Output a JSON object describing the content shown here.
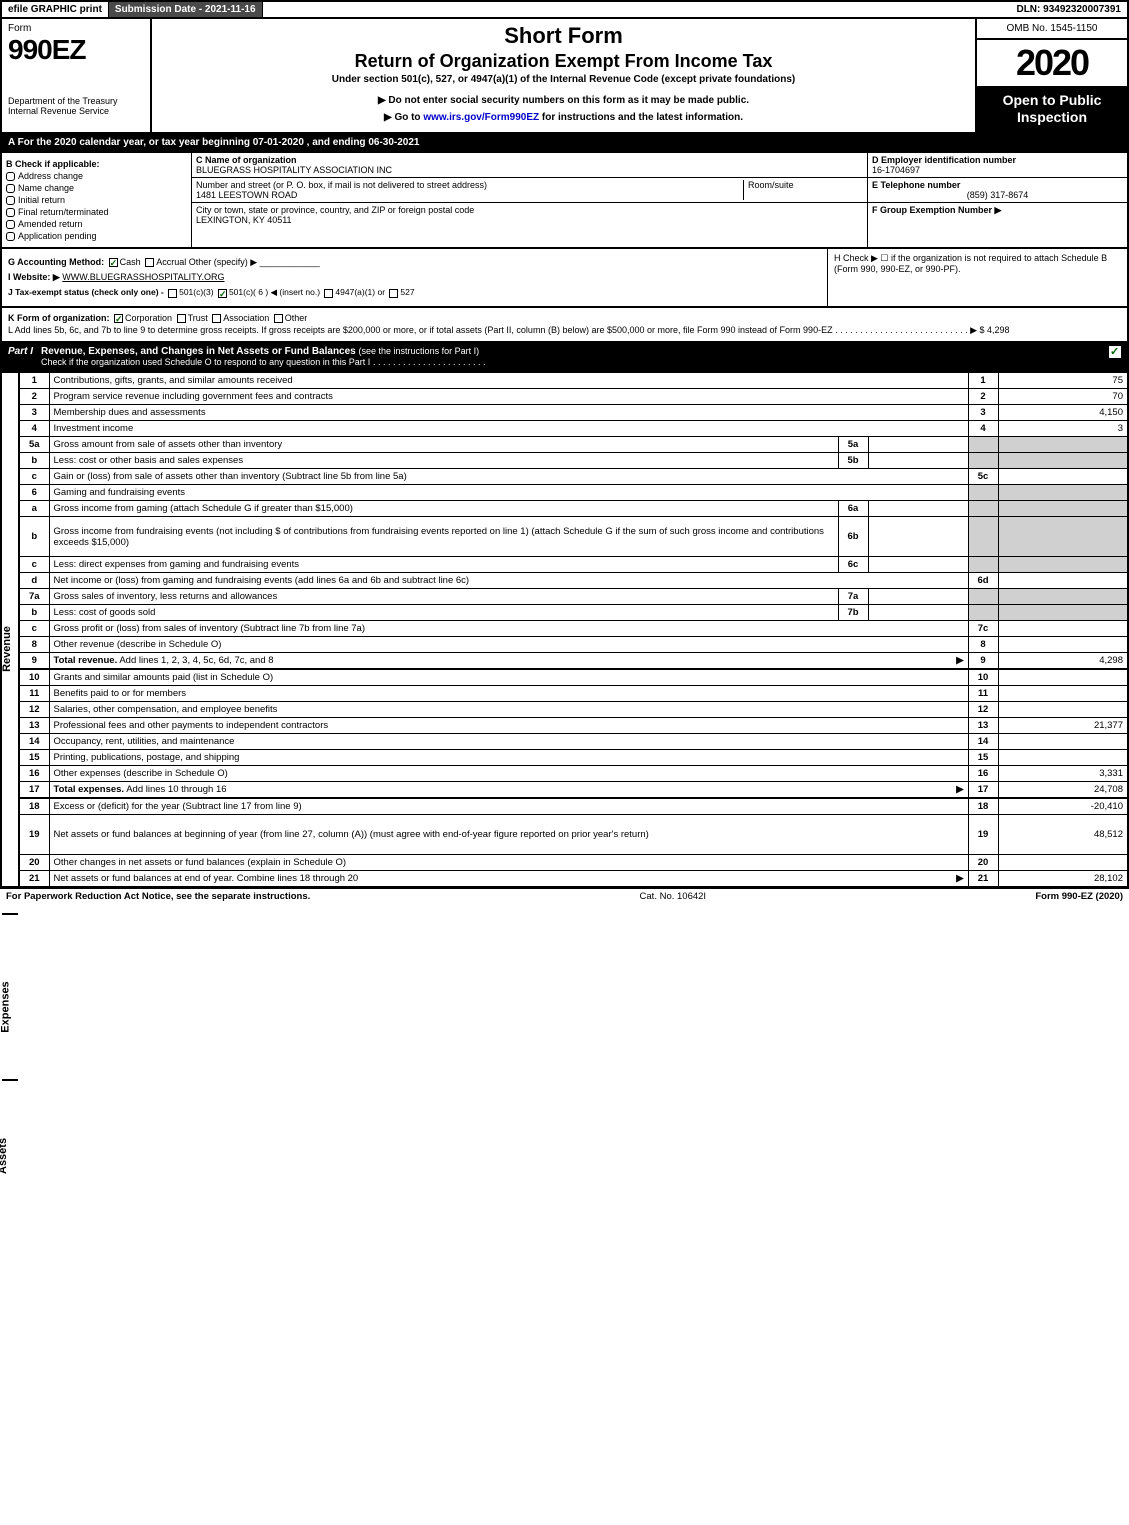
{
  "topbar": {
    "efile": "efile GRAPHIC print",
    "subdate": "Submission Date - 2021-11-16",
    "dln": "DLN: 93492320007391"
  },
  "header": {
    "form_word": "Form",
    "form_no": "990EZ",
    "dept": "Department of the Treasury\nInternal Revenue Service",
    "title1": "Short Form",
    "title2": "Return of Organization Exempt From Income Tax",
    "subtitle": "Under section 501(c), 527, or 4947(a)(1) of the Internal Revenue Code (except private foundations)",
    "warn": "▶ Do not enter social security numbers on this form as it may be made public.",
    "goto_pre": "▶ Go to ",
    "goto_url": "www.irs.gov/Form990EZ",
    "goto_post": " for instructions and the latest information.",
    "omb": "OMB No. 1545-1150",
    "year": "2020",
    "open": "Open to Public Inspection"
  },
  "period": "A For the 2020 calendar year, or tax year beginning 07-01-2020 , and ending 06-30-2021",
  "boxB": {
    "label": "B Check if applicable:",
    "items": [
      "Address change",
      "Name change",
      "Initial return",
      "Final return/terminated",
      "Amended return",
      "Application pending"
    ]
  },
  "boxC": {
    "name_label": "C Name of organization",
    "name": "BLUEGRASS HOSPITALITY ASSOCIATION INC",
    "street_label": "Number and street (or P. O. box, if mail is not delivered to street address)",
    "street": "1481 LEESTOWN ROAD",
    "room_label": "Room/suite",
    "city_label": "City or town, state or province, country, and ZIP or foreign postal code",
    "city": "LEXINGTON, KY  40511"
  },
  "boxD": {
    "ein_label": "D Employer identification number",
    "ein": "16-1704697",
    "phone_label": "E Telephone number",
    "phone": "(859) 317-8674",
    "group_label": "F Group Exemption Number ▶"
  },
  "gh": {
    "g_label": "G Accounting Method:",
    "g_opts": [
      "Cash",
      "Accrual",
      "Other (specify) ▶"
    ],
    "g_checked": 0,
    "i_label": "I Website: ▶",
    "i_val": "WWW.BLUEGRASSHOSPITALITY.ORG",
    "j_label": "J Tax-exempt status (check only one) -",
    "j_opts": [
      "501(c)(3)",
      "501(c)( 6 ) ◀ (insert no.)",
      "4947(a)(1) or",
      "527"
    ],
    "j_checked": 1,
    "h_text": "H Check ▶ ☐ if the organization is not required to attach Schedule B (Form 990, 990-EZ, or 990-PF)."
  },
  "k": {
    "label": "K Form of organization:",
    "opts": [
      "Corporation",
      "Trust",
      "Association",
      "Other"
    ],
    "checked": 0
  },
  "l": {
    "text": "L Add lines 5b, 6c, and 7b to line 9 to determine gross receipts. If gross receipts are $200,000 or more, or if total assets (Part II, column (B) below) are $500,000 or more, file Form 990 instead of Form 990-EZ",
    "amount": "▶ $ 4,298"
  },
  "part1": {
    "tab": "Part I",
    "title": "Revenue, Expenses, and Changes in Net Assets or Fund Balances",
    "sub": "(see the instructions for Part I)",
    "check_label": "Check if the organization used Schedule O to respond to any question in this Part I"
  },
  "sections": {
    "revenue": "Revenue",
    "expenses": "Expenses",
    "netassets": "Net Assets"
  },
  "lines": [
    {
      "no": "1",
      "desc": "Contributions, gifts, grants, and similar amounts received",
      "rno": "1",
      "rval": "75"
    },
    {
      "no": "2",
      "desc": "Program service revenue including government fees and contracts",
      "rno": "2",
      "rval": "70"
    },
    {
      "no": "3",
      "desc": "Membership dues and assessments",
      "rno": "3",
      "rval": "4,150"
    },
    {
      "no": "4",
      "desc": "Investment income",
      "rno": "4",
      "rval": "3"
    },
    {
      "no": "5a",
      "desc": "Gross amount from sale of assets other than inventory",
      "subno": "5a",
      "subval": "",
      "shade": true
    },
    {
      "no": "b",
      "desc": "Less: cost or other basis and sales expenses",
      "subno": "5b",
      "subval": "",
      "shade": true
    },
    {
      "no": "c",
      "desc": "Gain or (loss) from sale of assets other than inventory (Subtract line 5b from line 5a)",
      "rno": "5c",
      "rval": ""
    },
    {
      "no": "6",
      "desc": "Gaming and fundraising events",
      "shade": true,
      "noval": true
    },
    {
      "no": "a",
      "desc": "Gross income from gaming (attach Schedule G if greater than $15,000)",
      "subno": "6a",
      "subval": "",
      "shade": true
    },
    {
      "no": "b",
      "desc": "Gross income from fundraising events (not including $                  of contributions from fundraising events reported on line 1) (attach Schedule G if the sum of such gross income and contributions exceeds $15,000)",
      "subno": "6b",
      "subval": "",
      "shade": true,
      "tall": true
    },
    {
      "no": "c",
      "desc": "Less: direct expenses from gaming and fundraising events",
      "subno": "6c",
      "subval": "",
      "shade": true
    },
    {
      "no": "d",
      "desc": "Net income or (loss) from gaming and fundraising events (add lines 6a and 6b and subtract line 6c)",
      "rno": "6d",
      "rval": ""
    },
    {
      "no": "7a",
      "desc": "Gross sales of inventory, less returns and allowances",
      "subno": "7a",
      "subval": "",
      "shade": true
    },
    {
      "no": "b",
      "desc": "Less: cost of goods sold",
      "subno": "7b",
      "subval": "",
      "shade": true
    },
    {
      "no": "c",
      "desc": "Gross profit or (loss) from sales of inventory (Subtract line 7b from line 7a)",
      "rno": "7c",
      "rval": ""
    },
    {
      "no": "8",
      "desc": "Other revenue (describe in Schedule O)",
      "rno": "8",
      "rval": ""
    },
    {
      "no": "9",
      "desc": "Total revenue. Add lines 1, 2, 3, 4, 5c, 6d, 7c, and 8",
      "rno": "9",
      "rval": "4,298",
      "bold": true,
      "arrow": true
    },
    {
      "no": "10",
      "desc": "Grants and similar amounts paid (list in Schedule O)",
      "rno": "10",
      "rval": "",
      "section": "expenses"
    },
    {
      "no": "11",
      "desc": "Benefits paid to or for members",
      "rno": "11",
      "rval": ""
    },
    {
      "no": "12",
      "desc": "Salaries, other compensation, and employee benefits",
      "rno": "12",
      "rval": ""
    },
    {
      "no": "13",
      "desc": "Professional fees and other payments to independent contractors",
      "rno": "13",
      "rval": "21,377"
    },
    {
      "no": "14",
      "desc": "Occupancy, rent, utilities, and maintenance",
      "rno": "14",
      "rval": ""
    },
    {
      "no": "15",
      "desc": "Printing, publications, postage, and shipping",
      "rno": "15",
      "rval": ""
    },
    {
      "no": "16",
      "desc": "Other expenses (describe in Schedule O)",
      "rno": "16",
      "rval": "3,331"
    },
    {
      "no": "17",
      "desc": "Total expenses. Add lines 10 through 16",
      "rno": "17",
      "rval": "24,708",
      "bold": true,
      "arrow": true
    },
    {
      "no": "18",
      "desc": "Excess or (deficit) for the year (Subtract line 17 from line 9)",
      "rno": "18",
      "rval": "-20,410",
      "section": "netassets"
    },
    {
      "no": "19",
      "desc": "Net assets or fund balances at beginning of year (from line 27, column (A)) (must agree with end-of-year figure reported on prior year's return)",
      "rno": "19",
      "rval": "48,512",
      "tall": true
    },
    {
      "no": "20",
      "desc": "Other changes in net assets or fund balances (explain in Schedule O)",
      "rno": "20",
      "rval": ""
    },
    {
      "no": "21",
      "desc": "Net assets or fund balances at end of year. Combine lines 18 through 20",
      "rno": "21",
      "rval": "28,102",
      "arrow": true
    }
  ],
  "footer": {
    "left": "For Paperwork Reduction Act Notice, see the separate instructions.",
    "mid": "Cat. No. 10642I",
    "right": "Form 990-EZ (2020)"
  }
}
